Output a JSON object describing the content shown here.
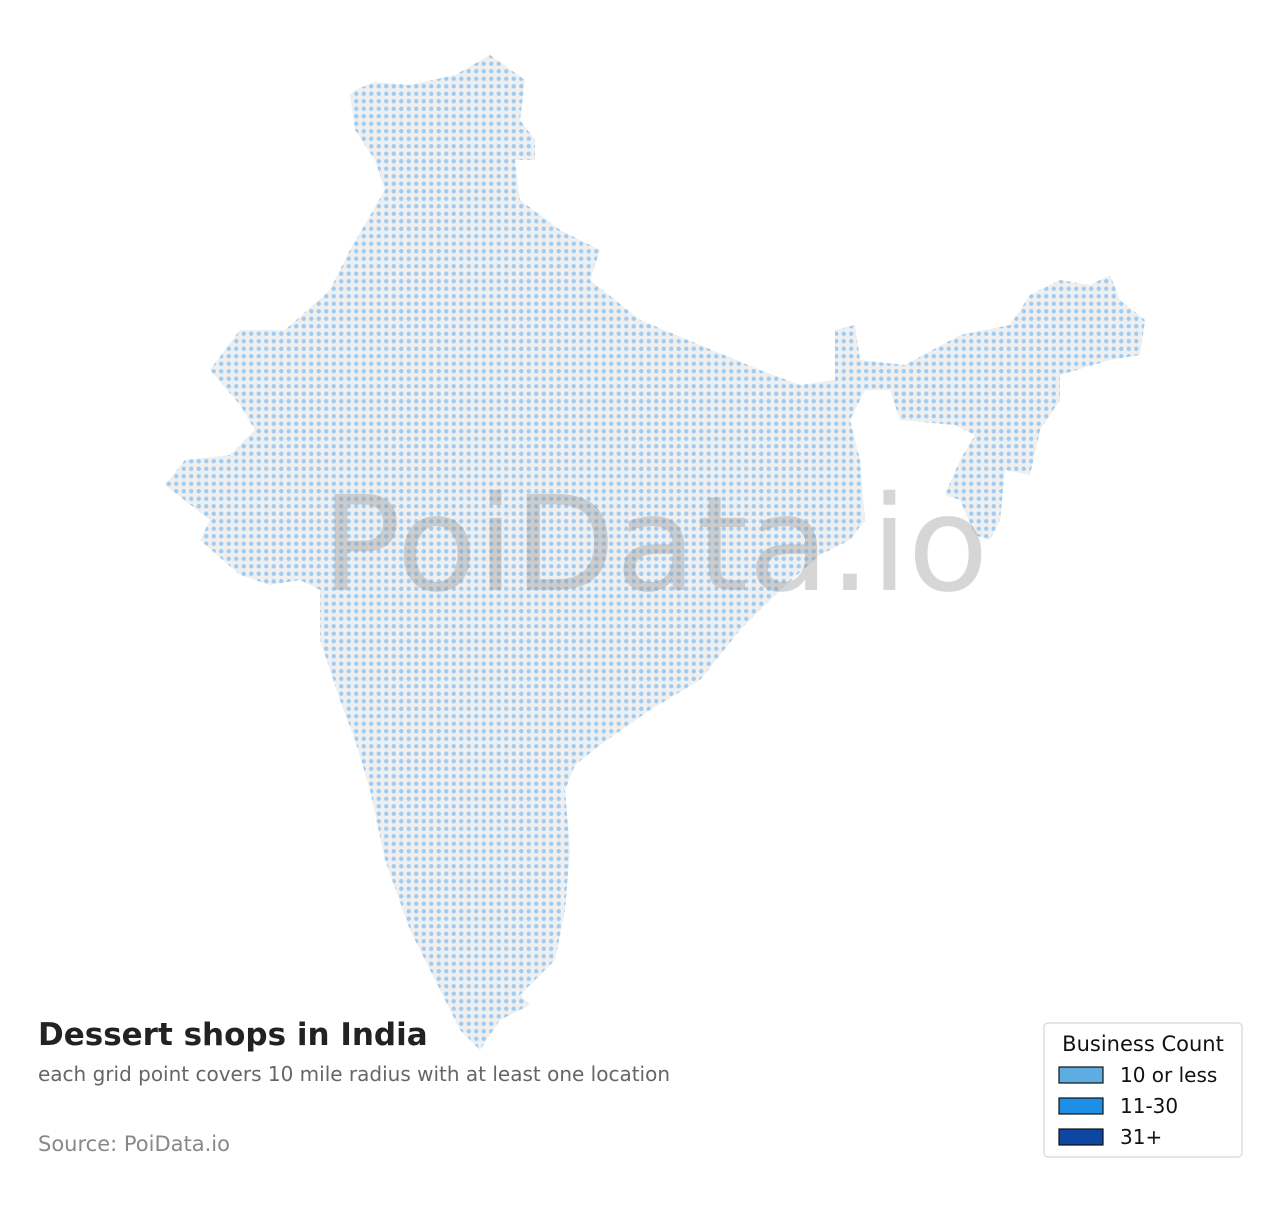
{
  "title": "Dessert shops in India",
  "subtitle": "each grid point covers 10 mile radius with at least one location",
  "source": "Source: PoiData.io",
  "watermark": "PoiData.io",
  "legend": {
    "title": "Business Count",
    "items": [
      {
        "label": "10 or less",
        "color": "#5dade2"
      },
      {
        "label": "11-30",
        "color": "#1e8fe6"
      },
      {
        "label": "31+",
        "color": "#0d47a1"
      }
    ]
  }
}
